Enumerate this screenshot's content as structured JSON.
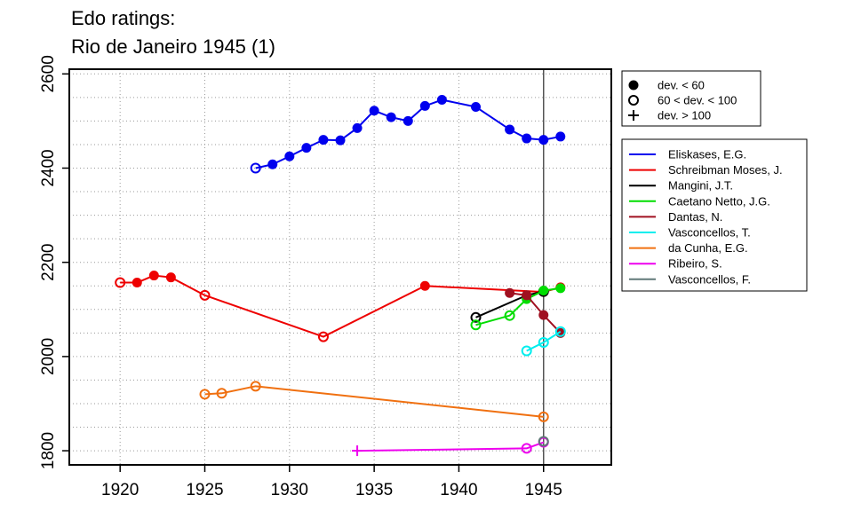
{
  "title_lines": [
    "Edo ratings:",
    "Rio de Janeiro 1945 (1)"
  ],
  "chart_data": {
    "type": "line",
    "title": "Edo ratings:\nRio de Janeiro 1945 (1)",
    "xlabel": "",
    "ylabel": "",
    "xlim": [
      1917,
      1949
    ],
    "ylim": [
      1770,
      2610
    ],
    "x_ticks": [
      1920,
      1925,
      1930,
      1935,
      1940,
      1945
    ],
    "x_tick_labels": [
      "1920",
      "1925",
      "1930",
      "1935",
      "1940",
      "1945"
    ],
    "y_ticks": [
      1800,
      2000,
      2200,
      2400,
      2600
    ],
    "y_tick_labels": [
      "1800",
      "2000",
      "2200",
      "2400",
      "2600"
    ],
    "grid": true,
    "reference_line_x": 1945,
    "marker_legend": [
      {
        "label": "dev. < 60",
        "marker": "filled"
      },
      {
        "label": "60 < dev. < 100",
        "marker": "open"
      },
      {
        "label": "dev. > 100",
        "marker": "plus"
      }
    ],
    "legend_placement": "right",
    "series": [
      {
        "name": "Eliskases, E.G.",
        "color": "#0000ee",
        "x": [
          1928,
          1929,
          1930,
          1931,
          1932,
          1933,
          1934,
          1935,
          1936,
          1937,
          1938,
          1939,
          1941,
          1943,
          1944,
          1945,
          1946
        ],
        "y": [
          2400,
          2408,
          2425,
          2443,
          2460,
          2459,
          2485,
          2522,
          2508,
          2500,
          2532,
          2545,
          2530,
          2482,
          2463,
          2460,
          2467
        ],
        "markers": [
          "open",
          "filled",
          "filled",
          "filled",
          "filled",
          "filled",
          "filled",
          "filled",
          "filled",
          "filled",
          "filled",
          "filled",
          "filled",
          "filled",
          "filled",
          "filled",
          "filled"
        ]
      },
      {
        "name": "Schreibman Moses, J.",
        "color": "#ee0000",
        "x": [
          1920,
          1921,
          1922,
          1923,
          1925,
          1932,
          1938,
          1945,
          1946
        ],
        "y": [
          2157,
          2157,
          2172,
          2168,
          2130,
          2042,
          2150,
          2137,
          2147
        ],
        "markers": [
          "open",
          "filled",
          "filled",
          "filled",
          "open",
          "open",
          "filled",
          "filled",
          "filled"
        ]
      },
      {
        "name": "Mangini, J.T.",
        "color": "#000000",
        "x": [
          1941,
          1944,
          1945
        ],
        "y": [
          2083,
          2130,
          2138
        ],
        "markers": [
          "open",
          "filled",
          "open"
        ]
      },
      {
        "name": "Caetano Netto, J.G.",
        "color": "#00dd00",
        "x": [
          1941,
          1943,
          1944,
          1945,
          1946
        ],
        "y": [
          2067,
          2087,
          2122,
          2140,
          2145
        ],
        "markers": [
          "open",
          "open",
          "filled",
          "filled",
          "filled"
        ]
      },
      {
        "name": "Dantas, N.",
        "color": "#a01020",
        "x": [
          1943,
          1944,
          1945,
          1946
        ],
        "y": [
          2135,
          2130,
          2088,
          2050
        ],
        "markers": [
          "filled",
          "filled",
          "filled",
          "filled"
        ]
      },
      {
        "name": "Vasconcellos, T.",
        "color": "#00eeee",
        "x": [
          1944,
          1945,
          1946
        ],
        "y": [
          2012,
          2030,
          2053
        ],
        "markers": [
          "open",
          "open",
          "open"
        ]
      },
      {
        "name": "da Cunha, E.G.",
        "color": "#f07010",
        "x": [
          1925,
          1926,
          1928,
          1945
        ],
        "y": [
          1920,
          1922,
          1937,
          1872
        ],
        "markers": [
          "open",
          "open",
          "open",
          "open"
        ]
      },
      {
        "name": "Ribeiro, S.",
        "color": "#ee00ee",
        "x": [
          1934,
          1944,
          1945
        ],
        "y": [
          1800,
          1805,
          1818
        ],
        "markers": [
          "plus",
          "open",
          "open"
        ]
      },
      {
        "name": "Vasconcellos, F.",
        "color": "#607878",
        "x": [
          1945
        ],
        "y": [
          1820
        ],
        "markers": [
          "open"
        ]
      }
    ]
  }
}
